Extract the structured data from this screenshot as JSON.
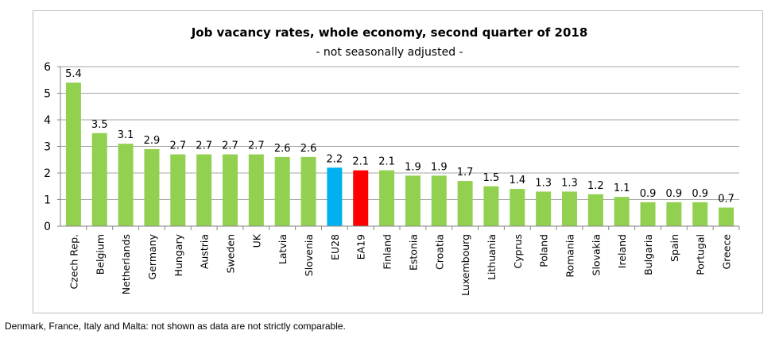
{
  "chart_data": {
    "type": "bar",
    "title": "Job vacancy rates, whole economy, second quarter of 2018",
    "subtitle": "- not seasonally adjusted -",
    "categories": [
      "Czech Rep.",
      "Belgium",
      "Netherlands",
      "Germany",
      "Hungary",
      "Austria",
      "Sweden",
      "UK",
      "Latvia",
      "Slovenia",
      "EU28",
      "EA19",
      "Finland",
      "Estonia",
      "Croatia",
      "Luxembourg",
      "Lithuania",
      "Cyprus",
      "Poland",
      "Romania",
      "Slovakia",
      "Ireland",
      "Bulgaria",
      "Spain",
      "Portugal",
      "Greece"
    ],
    "values": [
      5.4,
      3.5,
      3.1,
      2.9,
      2.7,
      2.7,
      2.7,
      2.7,
      2.6,
      2.6,
      2.2,
      2.1,
      2.1,
      1.9,
      1.9,
      1.7,
      1.5,
      1.4,
      1.3,
      1.3,
      1.2,
      1.1,
      0.9,
      0.9,
      0.9,
      0.7
    ],
    "value_labels": [
      "5.4",
      "3.5",
      "3.1",
      "2.9",
      "2.7",
      "2.7",
      "2.7",
      "2.7",
      "2.6",
      "2.6",
      "2.2",
      "2.1",
      "2.1",
      "1.9",
      "1.9",
      "1.7",
      "1.5",
      "1.4",
      "1.3",
      "1.3",
      "1.2",
      "1.1",
      "0.9",
      "0.9",
      "0.9",
      "0.7"
    ],
    "ylim": [
      0,
      6
    ],
    "yticks": [
      "0",
      "1",
      "2",
      "3",
      "4",
      "5",
      "6"
    ],
    "grid": true,
    "xlabel": "",
    "ylabel": "",
    "colors": {
      "default": "#92d050",
      "EU28": "#00b0f0",
      "EA19": "#ff0000"
    }
  },
  "footnote": "Denmark, France, Italy and Malta: not shown as data are not strictly comparable."
}
